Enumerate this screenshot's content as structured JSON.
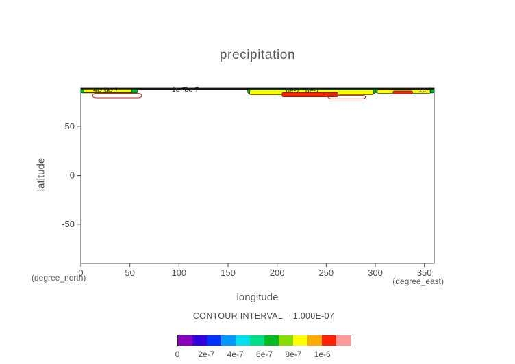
{
  "chart_data": {
    "type": "contour",
    "title": "precipitation",
    "xlabel": "longitude",
    "ylabel": "latitude",
    "x_units": "(degree_east)",
    "y_units": "(degree_north)",
    "xlim": [
      0,
      360
    ],
    "ylim": [
      -90,
      90
    ],
    "xticks": [
      0,
      50,
      100,
      150,
      200,
      250,
      300,
      350
    ],
    "yticks": [
      50,
      0,
      -50
    ],
    "grid": false,
    "contour_interval_label": "CONTOUR INTERVAL = 1.000E-07",
    "colorbar": {
      "colors": [
        "#8800bb",
        "#3300dd",
        "#0033ff",
        "#0099ff",
        "#00e0ee",
        "#00dd88",
        "#00bb22",
        "#88dd00",
        "#ffff00",
        "#ffaa00",
        "#ff2200",
        "#ff9999"
      ],
      "tick_labels": [
        "0",
        "2e-7",
        "4e-7",
        "6e-7",
        "8e-7",
        "1e-6"
      ]
    },
    "filled_regions": [
      {
        "lon": [
          0,
          58
        ],
        "lat": [
          84.5,
          90
        ],
        "color": "#00bb22"
      },
      {
        "lon": [
          58,
          170
        ],
        "lat": [
          88,
          90
        ],
        "color": "#00bb22"
      },
      {
        "lon": [
          170,
          300
        ],
        "lat": [
          84,
          90
        ],
        "color": "#00bb22"
      },
      {
        "lon": [
          300,
          360
        ],
        "lat": [
          84.5,
          90
        ],
        "color": "#00bb22"
      },
      {
        "lon": [
          3,
          52
        ],
        "lat": [
          84.8,
          88.5
        ],
        "color": "#ffff00"
      },
      {
        "lon": [
          172,
          298
        ],
        "lat": [
          82.5,
          87.5
        ],
        "color": "#ffff00"
      },
      {
        "lon": [
          302,
          356
        ],
        "lat": [
          84,
          88
        ],
        "color": "#ffff00"
      },
      {
        "lon": [
          205,
          262
        ],
        "lat": [
          80.5,
          85
        ],
        "color": "#ff2200"
      },
      {
        "lon": [
          318,
          338
        ],
        "lat": [
          83.5,
          86.5
        ],
        "color": "#ff2200"
      }
    ],
    "contour_outlines": [
      {
        "lon": [
          12,
          62
        ],
        "lat": [
          79.5,
          84
        ]
      },
      {
        "lon": [
          252,
          290
        ],
        "lat": [
          78.5,
          82
        ]
      }
    ],
    "inline_labels": [
      {
        "text": "4e-7",
        "lon": 20,
        "lat": 87.5
      },
      {
        "text": "6e-7",
        "lon": 31,
        "lat": 87.5
      },
      {
        "text": "1e-7",
        "lon": 100,
        "lat": 88
      },
      {
        "text": "8e-7",
        "lon": 113,
        "lat": 88
      },
      {
        "text": "6e-7",
        "lon": 216,
        "lat": 87
      },
      {
        "text": "8e-7",
        "lon": 236,
        "lat": 87
      },
      {
        "text": "1e-7",
        "lon": 351,
        "lat": 87.5
      }
    ]
  }
}
